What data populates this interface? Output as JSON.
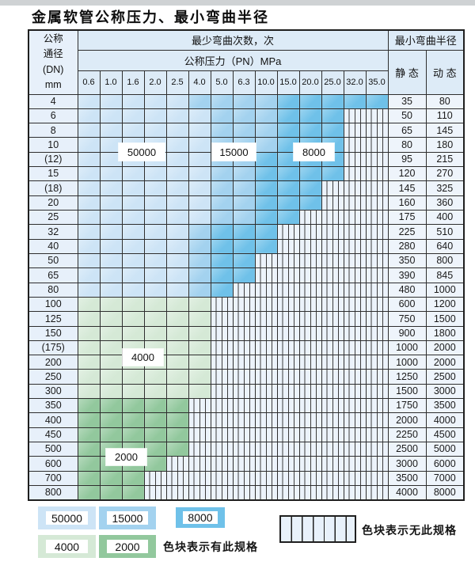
{
  "title": "金属软管公称压力、最小弯曲半径",
  "table": {
    "dn_header": [
      "公称",
      "通径",
      "(DN)",
      "mm"
    ],
    "bend_times_header": "最少弯曲次数，次",
    "pressure_header": "公称压力（PN）MPa",
    "radius_header": "最小弯曲半径",
    "static_header": "静 态",
    "dynamic_header": "动 态",
    "pressure_columns": [
      "0.6",
      "1.0",
      "1.6",
      "2.0",
      "2.5",
      "4.0",
      "5.0",
      "6.3",
      "10.0",
      "15.0",
      "20.0",
      "25.0",
      "32.0",
      "35.0"
    ],
    "cell_code_meaning": {
      "5": "50000次",
      "1": "15000次",
      "8": "8000次",
      "4": "4000次",
      "2": "2000次",
      "x": "无此规格"
    },
    "rows": [
      {
        "dn": "4",
        "cells": "55555111188888",
        "static": "35",
        "dynamic": "80"
      },
      {
        "dn": "6",
        "cells": "555555111888xx",
        "static": "50",
        "dynamic": "110"
      },
      {
        "dn": "8",
        "cells": "555555111888xx",
        "static": "65",
        "dynamic": "145"
      },
      {
        "dn": "10",
        "cells": "555555111888xx",
        "static": "80",
        "dynamic": "180"
      },
      {
        "dn": "(12)",
        "cells": "555555118888xx",
        "static": "95",
        "dynamic": "215"
      },
      {
        "dn": "15",
        "cells": "555555118888xx",
        "static": "120",
        "dynamic": "270"
      },
      {
        "dn": "(18)",
        "cells": "55555511888xxx",
        "static": "145",
        "dynamic": "325"
      },
      {
        "dn": "20",
        "cells": "55555511888xxx",
        "static": "160",
        "dynamic": "360"
      },
      {
        "dn": "25",
        "cells": "5555551188xxxx",
        "static": "175",
        "dynamic": "400"
      },
      {
        "dn": "32",
        "cells": "555551888xxxxx",
        "static": "225",
        "dynamic": "510"
      },
      {
        "dn": "40",
        "cells": "555551888xxxxx",
        "static": "280",
        "dynamic": "640"
      },
      {
        "dn": "50",
        "cells": "55555188xxxxxx",
        "static": "350",
        "dynamic": "800"
      },
      {
        "dn": "65",
        "cells": "55555188xxxxxx",
        "static": "390",
        "dynamic": "845"
      },
      {
        "dn": "80",
        "cells": "5555518xxxxxxx",
        "static": "480",
        "dynamic": "1000"
      },
      {
        "dn": "100",
        "cells": "444444xxxxxxxx",
        "static": "600",
        "dynamic": "1200"
      },
      {
        "dn": "125",
        "cells": "444444xxxxxxxx",
        "static": "750",
        "dynamic": "1500"
      },
      {
        "dn": "150",
        "cells": "444444xxxxxxxx",
        "static": "900",
        "dynamic": "1800"
      },
      {
        "dn": "(175)",
        "cells": "444444xxxxxxxx",
        "static": "1000",
        "dynamic": "2000"
      },
      {
        "dn": "200",
        "cells": "444444xxxxxxxx",
        "static": "1000",
        "dynamic": "2000"
      },
      {
        "dn": "250",
        "cells": "444444xxxxxxxx",
        "static": "1250",
        "dynamic": "2500"
      },
      {
        "dn": "300",
        "cells": "444444xxxxxxxx",
        "static": "1500",
        "dynamic": "3000"
      },
      {
        "dn": "350",
        "cells": "22222xxxxxxxxx",
        "static": "1750",
        "dynamic": "3500"
      },
      {
        "dn": "400",
        "cells": "22222xxxxxxxxx",
        "static": "2000",
        "dynamic": "4000"
      },
      {
        "dn": "450",
        "cells": "22222xxxxxxxxx",
        "static": "2250",
        "dynamic": "4500"
      },
      {
        "dn": "500",
        "cells": "22222xxxxxxxxx",
        "static": "2500",
        "dynamic": "5000"
      },
      {
        "dn": "600",
        "cells": "2222xxxxxxxxxx",
        "static": "3000",
        "dynamic": "6000"
      },
      {
        "dn": "700",
        "cells": "222xxxxxxxxxxx",
        "static": "3500",
        "dynamic": "7000"
      },
      {
        "dn": "800",
        "cells": "222xxxxxxxxxxx",
        "static": "4000",
        "dynamic": "8000"
      }
    ],
    "band_labels": [
      "50000",
      "15000",
      "8000",
      "4000",
      "2000"
    ]
  },
  "legend": {
    "items": [
      {
        "value": "50000",
        "color": "#cde4f6"
      },
      {
        "value": "15000",
        "color": "#a3d2ef"
      },
      {
        "value": "8000",
        "color": "#6fc1e9"
      },
      {
        "value": "4000",
        "color": "#d5e9d6"
      },
      {
        "value": "2000",
        "color": "#92c89d"
      }
    ],
    "has_spec_text": "色块表示有此规格",
    "no_spec_text": "色块表示无此规格"
  },
  "colors": {
    "header_bg": "#ddebf7",
    "dn_column_bg": "#e7f0fa",
    "value_column_bg": "#eef4fb",
    "hatch_bg": "#ecf3fb",
    "border": "#2e2e2e"
  }
}
